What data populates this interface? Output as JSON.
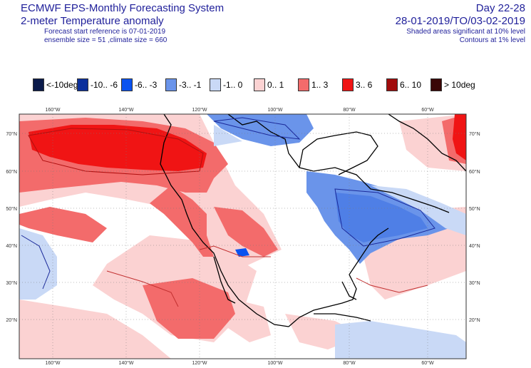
{
  "header": {
    "title_line1": "ECMWF EPS-Monthly Forecasting System",
    "title_line2": "2-meter Temperature anomaly",
    "forecast_ref": "Forecast start reference is 07-01-2019",
    "ensemble": "ensemble size = 51  ,climate size = 660",
    "day_range": "Day 22-28",
    "date_range": "28-01-2019/TO/03-02-2019",
    "shading_note": "Shaded areas significant at 10% level",
    "contour_note": "Contours at 1% level"
  },
  "legend": [
    {
      "label": "<-10deg",
      "color": "#0a1a4a"
    },
    {
      "label": "-10.. -6",
      "color": "#0b2f9c"
    },
    {
      "label": "-6.. -3",
      "color": "#0a52f0"
    },
    {
      "label": "-3.. -1",
      "color": "#6a94ea"
    },
    {
      "label": "-1.. 0",
      "color": "#c9d9f6"
    },
    {
      "label": "0.. 1",
      "color": "#fbd2d2"
    },
    {
      "label": "1.. 3",
      "color": "#f36b6b"
    },
    {
      "label": "3.. 6",
      "color": "#f01414"
    },
    {
      "label": "6.. 10",
      "color": "#a10c0c"
    },
    {
      "label": "> 10deg",
      "color": "#3a0606"
    }
  ],
  "map": {
    "lon_labels": [
      "160°W",
      "140°W",
      "120°W",
      "100°W",
      "80°W",
      "60°W"
    ],
    "lat_labels": [
      "70°N",
      "60°N",
      "50°N",
      "40°N",
      "30°N",
      "20°N"
    ]
  }
}
